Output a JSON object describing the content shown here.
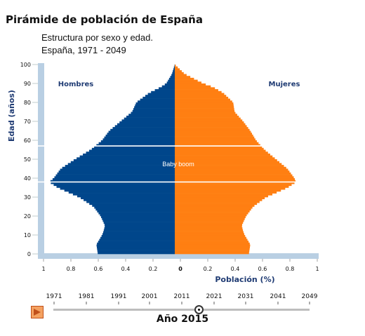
{
  "title": "Pirámide de población de España",
  "subtitle_line1": "Estructura por sexo y edad.",
  "subtitle_line2": "España, 1971 - 2049",
  "current_year_label": "Año 2015",
  "timeline": {
    "years": [
      "1971",
      "1981",
      "1991",
      "2001",
      "2011",
      "2021",
      "2031",
      "2041",
      "2049"
    ]
  },
  "colors": {
    "hombres": "#00468b",
    "mujeres": "#ff7f12",
    "axis_band": "#b9cfe3",
    "axis_text": "#1f3b73"
  },
  "icons": {
    "play": "play-icon"
  },
  "chart_data": {
    "type": "bar",
    "orientation": "horizontal-butterfly",
    "ylabel": "Edad (años)",
    "xlabel": "Población (%)",
    "annotation": "Baby boom",
    "y_ticks": [
      0,
      10,
      20,
      30,
      40,
      50,
      60,
      70,
      80,
      90,
      100
    ],
    "x_tick_labels": [
      "1",
      "0.8",
      "0.6",
      "0.4",
      "0.2",
      "0",
      "0.2",
      "0.4",
      "0.6",
      "0.8",
      "1"
    ],
    "xlim": [
      0,
      1
    ],
    "ylim": [
      0,
      100
    ],
    "series": [
      {
        "name": "Hombres",
        "ages": [
          0,
          5,
          10,
          12,
          15,
          20,
          25,
          30,
          35,
          38,
          40,
          45,
          50,
          55,
          60,
          65,
          70,
          75,
          80,
          85,
          88,
          90,
          95,
          100
        ],
        "values": [
          0.54,
          0.55,
          0.51,
          0.5,
          0.49,
          0.52,
          0.57,
          0.67,
          0.82,
          0.88,
          0.85,
          0.8,
          0.7,
          0.59,
          0.51,
          0.46,
          0.38,
          0.3,
          0.27,
          0.18,
          0.1,
          0.06,
          0.02,
          0.0
        ]
      },
      {
        "name": "Mujeres",
        "ages": [
          0,
          5,
          10,
          12,
          15,
          20,
          25,
          30,
          35,
          38,
          40,
          45,
          50,
          55,
          60,
          65,
          70,
          75,
          80,
          85,
          88,
          90,
          95,
          100
        ],
        "values": [
          0.52,
          0.53,
          0.49,
          0.48,
          0.47,
          0.5,
          0.55,
          0.64,
          0.79,
          0.85,
          0.84,
          0.79,
          0.71,
          0.63,
          0.57,
          0.53,
          0.48,
          0.42,
          0.41,
          0.34,
          0.27,
          0.2,
          0.07,
          0.0
        ]
      }
    ],
    "reference_ages": [
      38,
      57
    ]
  }
}
